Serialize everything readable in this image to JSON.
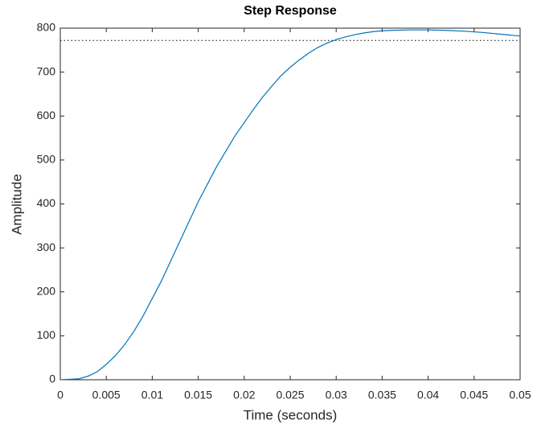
{
  "chart_data": {
    "type": "line",
    "title": "Step Response",
    "x_label": "Time (seconds)",
    "y_label": "Amplitude",
    "x": [
      0,
      0.002,
      0.003,
      0.004,
      0.005,
      0.006,
      0.007,
      0.008,
      0.009,
      0.01,
      0.011,
      0.012,
      0.013,
      0.014,
      0.015,
      0.016,
      0.017,
      0.018,
      0.019,
      0.02,
      0.021,
      0.022,
      0.023,
      0.024,
      0.025,
      0.026,
      0.027,
      0.028,
      0.029,
      0.03,
      0.031,
      0.032,
      0.033,
      0.034,
      0.035,
      0.036,
      0.038,
      0.04,
      0.042,
      0.044,
      0.046,
      0.048,
      0.05
    ],
    "values": [
      0,
      2,
      8,
      18,
      35,
      55,
      80,
      110,
      145,
      185,
      225,
      270,
      315,
      360,
      405,
      445,
      485,
      520,
      555,
      585,
      615,
      643,
      668,
      692,
      711,
      728,
      743,
      756,
      766,
      774,
      780,
      785,
      789,
      792,
      794,
      795,
      796,
      796,
      795,
      793,
      790,
      786,
      782
    ],
    "color": "#0072bd",
    "reference_line": 772,
    "xlim": [
      0,
      0.05
    ],
    "xticks": [
      0,
      0.005,
      0.01,
      0.015,
      0.02,
      0.025,
      0.03,
      0.035,
      0.04,
      0.045,
      0.05
    ],
    "ylim": [
      0,
      800
    ],
    "yticks": [
      0,
      100,
      200,
      300,
      400,
      500,
      600,
      700,
      800
    ],
    "grid": false
  }
}
